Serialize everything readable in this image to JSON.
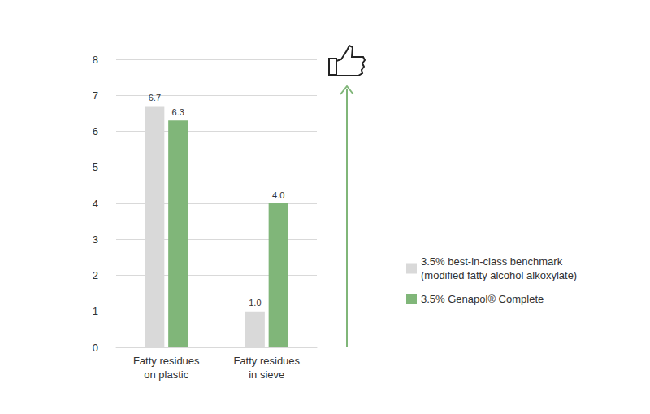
{
  "chart_data": {
    "type": "bar",
    "categories": [
      "Fatty residues\non plastic",
      "Fatty residues\nin sieve"
    ],
    "series": [
      {
        "name": "3.5% best-in-class benchmark\n(modified fatty alcohol alkoxylate)",
        "color": "#d9d9d9",
        "values": [
          6.7,
          1.0
        ],
        "value_labels": [
          "6.7",
          "1.0"
        ]
      },
      {
        "name": "3.5% Genapol® Complete",
        "color": "#80b679",
        "values": [
          6.3,
          4.0
        ],
        "value_labels": [
          "6.3",
          "4.0"
        ]
      }
    ],
    "ylim": [
      0,
      8
    ],
    "yticks": [
      0,
      1,
      2,
      3,
      4,
      5,
      6,
      7,
      8
    ],
    "grid": true,
    "legend": "right",
    "data_labels": true
  }
}
